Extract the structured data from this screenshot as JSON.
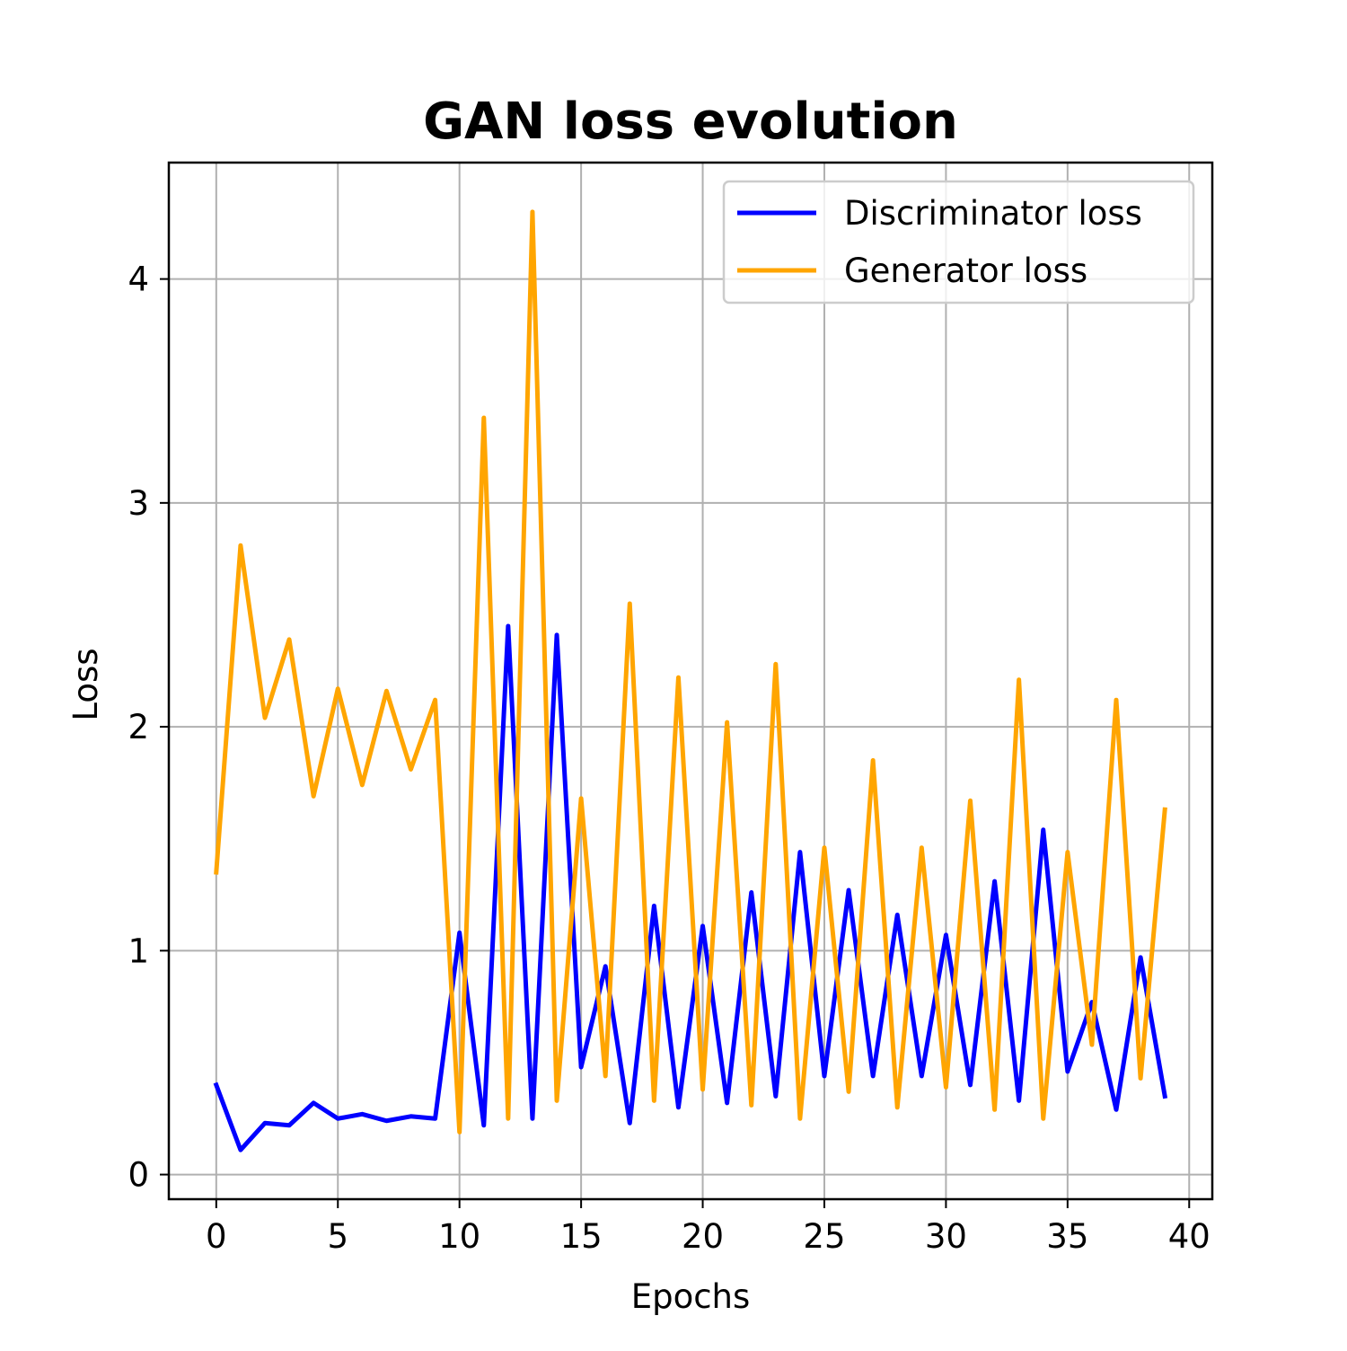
{
  "chart_data": {
    "type": "line",
    "title": "GAN loss evolution",
    "xlabel": "Epochs",
    "ylabel": "Loss",
    "xlim": [
      -1.95,
      40.95
    ],
    "ylim": [
      -0.11,
      4.52
    ],
    "xticks": [
      0,
      5,
      10,
      15,
      20,
      25,
      30,
      35,
      40
    ],
    "yticks": [
      0,
      1,
      2,
      3,
      4
    ],
    "grid": true,
    "legend_position": "top-right",
    "x": [
      0,
      1,
      2,
      3,
      4,
      5,
      6,
      7,
      8,
      9,
      10,
      11,
      12,
      13,
      14,
      15,
      16,
      17,
      18,
      19,
      20,
      21,
      22,
      23,
      24,
      25,
      26,
      27,
      28,
      29,
      30,
      31,
      32,
      33,
      34,
      35,
      36,
      37,
      38,
      39
    ],
    "series": [
      {
        "name": "Discriminator loss",
        "color": "#0000ff",
        "values": [
          0.4,
          0.11,
          0.23,
          0.22,
          0.32,
          0.25,
          0.27,
          0.24,
          0.26,
          0.25,
          1.08,
          0.22,
          2.45,
          0.25,
          2.41,
          0.48,
          0.93,
          0.23,
          1.2,
          0.3,
          1.11,
          0.32,
          1.26,
          0.35,
          1.44,
          0.44,
          1.27,
          0.44,
          1.16,
          0.44,
          1.07,
          0.4,
          1.31,
          0.33,
          1.54,
          0.46,
          0.77,
          0.29,
          0.97,
          0.35
        ]
      },
      {
        "name": "Generator loss",
        "color": "#ffa500",
        "values": [
          1.35,
          2.81,
          2.04,
          2.39,
          1.69,
          2.17,
          1.74,
          2.16,
          1.81,
          2.12,
          0.19,
          3.38,
          0.25,
          4.3,
          0.33,
          1.68,
          0.44,
          2.55,
          0.33,
          2.22,
          0.38,
          2.02,
          0.31,
          2.28,
          0.25,
          1.46,
          0.37,
          1.85,
          0.3,
          1.46,
          0.39,
          1.67,
          0.29,
          2.21,
          0.25,
          1.44,
          0.58,
          2.12,
          0.43,
          1.63
        ]
      }
    ]
  }
}
